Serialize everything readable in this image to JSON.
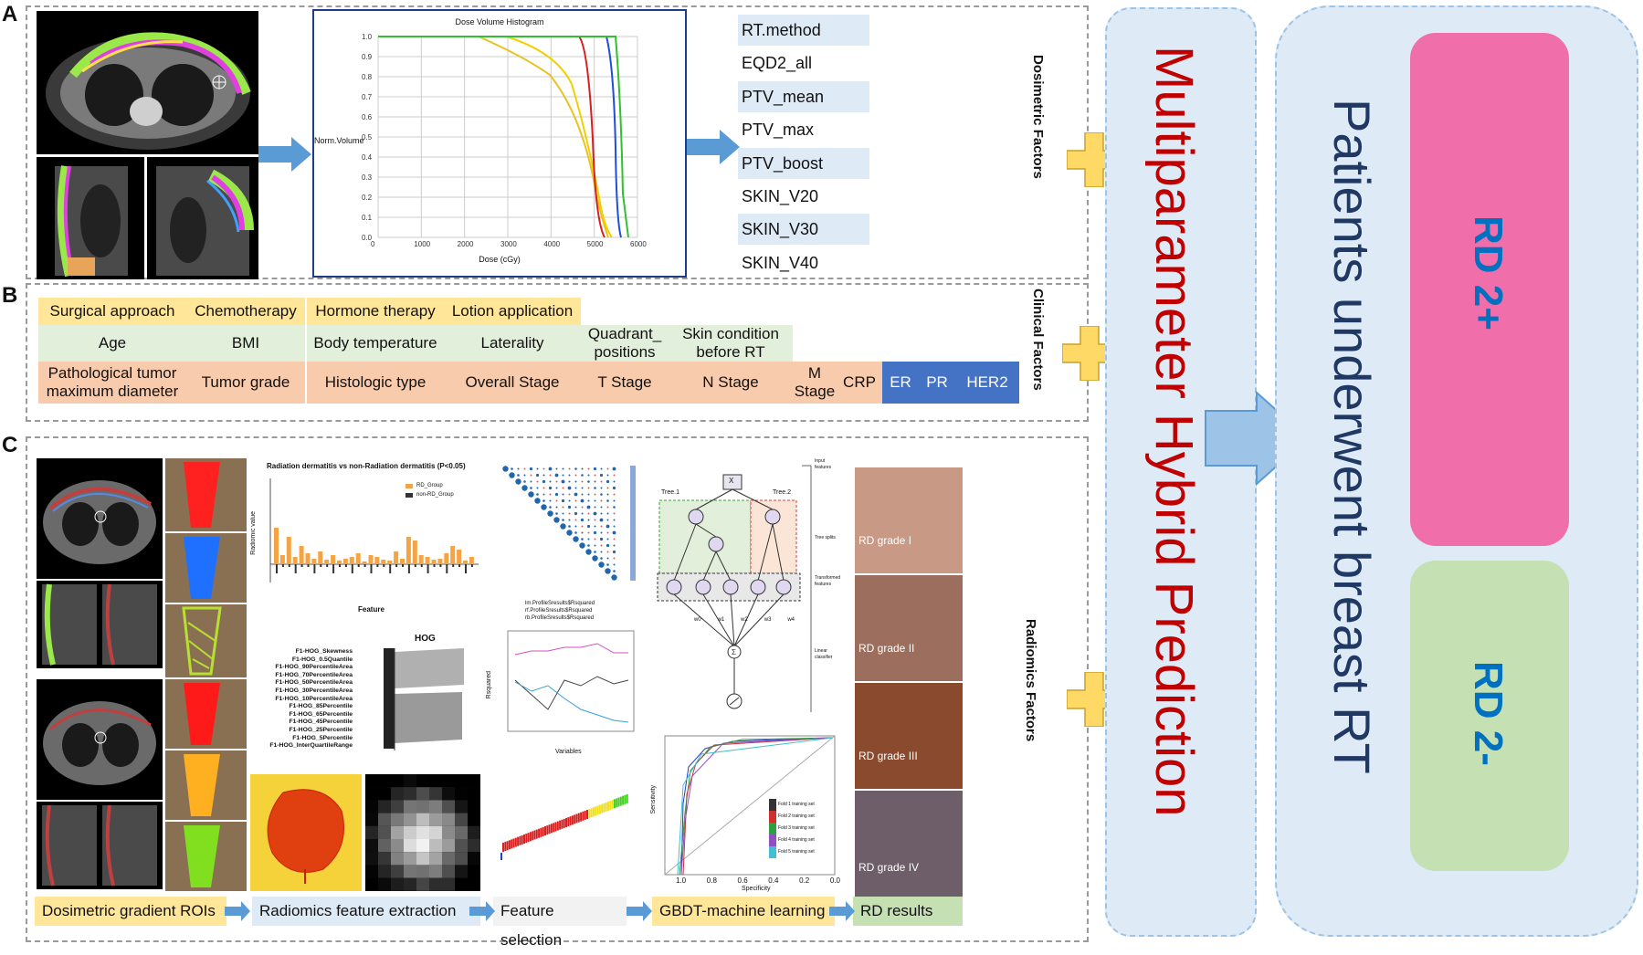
{
  "panels": {
    "a": "A",
    "b": "B",
    "c": "C"
  },
  "dvh": {
    "title": "Dose Volume Histogram",
    "ylabel": "Norm.Volume",
    "xlabel": "Dose (cGy)",
    "xticks": [
      "0",
      "1000",
      "2000",
      "3000",
      "4000",
      "5000",
      "6000"
    ],
    "yticks": [
      "0.0",
      "0.1",
      "0.2",
      "0.3",
      "0.4",
      "0.5",
      "0.6",
      "0.7",
      "0.8",
      "0.9",
      "1.0"
    ]
  },
  "dosimetric": {
    "label": "Dosimetric Factors",
    "items": [
      "RT.method",
      "EQD2_all",
      "PTV_mean",
      "PTV_max",
      "PTV_boost",
      "SKIN_V20",
      "SKIN_V30",
      "SKIN_V40"
    ]
  },
  "clinical": {
    "label": "Clinical Factors",
    "row1": [
      "Surgical approach",
      "Chemotherapy",
      "Hormone therapy",
      "Lotion application"
    ],
    "row2": [
      "Age",
      "BMI",
      "Body temperature",
      "Laterality",
      "Quadrant_ positions",
      "Skin condition before RT"
    ],
    "row3": [
      "Pathological tumor maximum diameter",
      "Tumor grade",
      "Histologic type",
      "Overall Stage",
      "T Stage",
      "N Stage",
      "M Stage",
      "CRP",
      "ER",
      "PR",
      "HER2"
    ]
  },
  "radiomics": {
    "label": "Radiomics Factors",
    "barchart_title": "Radiation dermatitis vs non-Radiation dermatitis (P<0.05)",
    "barchart_xlabel": "Feature",
    "barchart_ylabel": "Radiomic value",
    "barchart_legend": [
      "RD_Group",
      "non-RD_Group"
    ],
    "hog_title": "HOG",
    "hog_features": [
      "F1-HOG_Skewness",
      "F1-HOG_0.5Quantile",
      "F1-HOG_90PercentileArea",
      "F1-HOG_70PercentileArea",
      "F1-HOG_50PercentileArea",
      "F1-HOG_30PercentileArea",
      "F1-HOG_10PercentileArea",
      "F1-HOG_85Percentile",
      "F1-HOG_65Percentile",
      "F1-HOG_45Percentile",
      "F1-HOG_25Percentile",
      "F1-HOG_5Percentile",
      "F1-HOG_InterQuartileRange"
    ],
    "line_legend": [
      "lm.ProfileSresults$Rsquared",
      "rf.ProfileSresults$Rsquared",
      "rb.ProfileSresults$Rsquared"
    ],
    "line_xlabel": "Variables",
    "line_ylabel": "Rsquared",
    "tree_labels": {
      "root": "X",
      "tree1": "Tree.1",
      "tree2": "Tree.2",
      "weights": [
        "w0",
        "w1",
        "w2",
        "w3",
        "w4"
      ]
    },
    "tree_side": [
      "Input features",
      "Tree splits",
      "Transformed features",
      "Linear classifier"
    ],
    "roc_xlabel": "Specificity",
    "roc_ylabel": "Sensitivity",
    "roc_xticks": [
      "1.0",
      "0.8",
      "0.6",
      "0.4",
      "0.2",
      "0.0"
    ],
    "roc_legend": [
      "Fold 1 training set",
      "Fold 2 training set",
      "Fold 3 training set",
      "Fold 4 training set",
      "Fold 5 training set"
    ],
    "rd_grades": [
      "RD grade I",
      "RD grade II",
      "RD grade III",
      "RD grade IV"
    ],
    "pipeline": [
      "Dosimetric gradient ROIs",
      "Radiomics feature extraction",
      "Feature selection",
      "GBDT-machine learning",
      "RD results"
    ]
  },
  "hybrid": {
    "title": "Multiparameter Hybrid Prediction"
  },
  "patients": {
    "title": "Patients underwent breast RT"
  },
  "outcomes": {
    "rd2plus": "RD 2+",
    "rd2minus": "RD 2-"
  },
  "colors": {
    "accent_blue": "#5b9bd5",
    "plus_yellow": "#ffd966",
    "hybrid_red": "#c00000",
    "patients_navy": "#1f3864",
    "rd_plus_pink": "#f06eaa",
    "rd_minus_green": "#c5e0b3",
    "rd_text_blue": "#0070c0"
  }
}
